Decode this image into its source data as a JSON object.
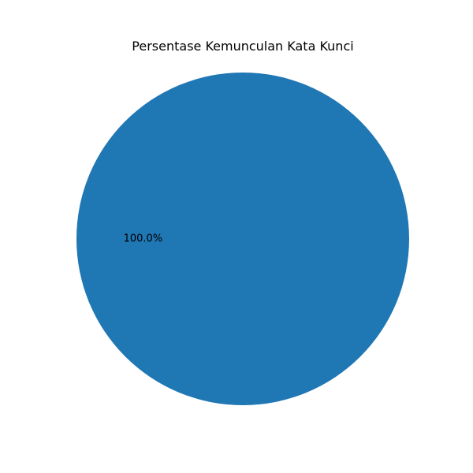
{
  "chart_data": {
    "type": "pie",
    "title": "Persentase Kemunculan Kata Kunci",
    "slices": [
      {
        "value": 100,
        "label_text": "100.0%",
        "color": "#1f77b4"
      }
    ]
  }
}
